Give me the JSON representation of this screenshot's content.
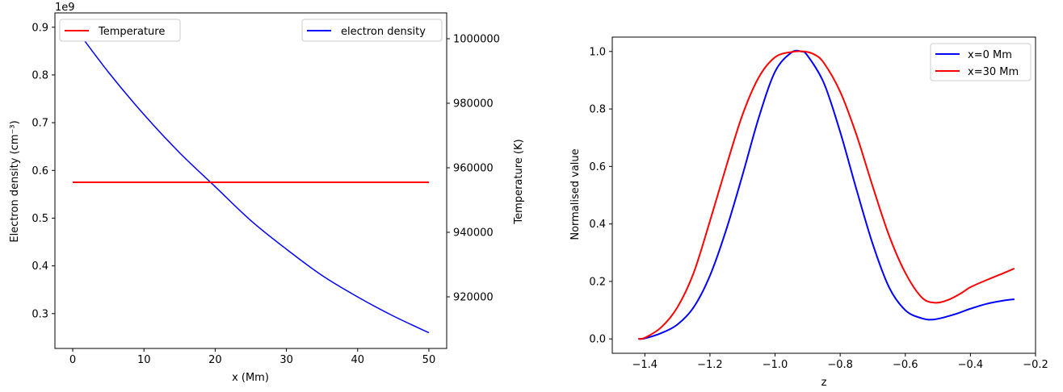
{
  "chart_data": [
    {
      "type": "line",
      "xlabel": "x (Mm)",
      "ylabel_left": "Electron density (cm⁻³)",
      "ylabel_right": "Temperature (K)",
      "offset_label": "1e9",
      "xlim": [
        -2.5,
        52.5
      ],
      "ylim_left": [
        0.227,
        0.93
      ],
      "ylim_right": [
        904000,
        1008000
      ],
      "x_ticks": [
        0,
        10,
        20,
        30,
        40,
        50
      ],
      "y_ticks_left": [
        0.3,
        0.4,
        0.5,
        0.6,
        0.7,
        0.8,
        0.9
      ],
      "y_ticks_right": [
        920000,
        940000,
        960000,
        980000,
        1000000
      ],
      "legend_left": "top-left",
      "legend_right": "top-right",
      "series": [
        {
          "name": "electron density",
          "axis": "left",
          "color": "#0000ff",
          "x": [
            0,
            5,
            10,
            15,
            20,
            25,
            30,
            35,
            40,
            45,
            50
          ],
          "values": [
            0.905,
            0.806,
            0.717,
            0.637,
            0.566,
            0.495,
            0.435,
            0.38,
            0.335,
            0.295,
            0.26
          ]
        },
        {
          "name": "Temperature",
          "axis": "right",
          "color": "#ff0000",
          "x": [
            0,
            50
          ],
          "values": [
            955500,
            955500
          ]
        }
      ]
    },
    {
      "type": "line",
      "xlabel": "z",
      "ylabel": "Normalised value",
      "xlim": [
        -1.5,
        -0.2
      ],
      "ylim": [
        -0.05,
        1.05
      ],
      "x_ticks": [
        -1.4,
        -1.2,
        -1.0,
        -0.8,
        -0.6,
        -0.4,
        -0.2
      ],
      "y_ticks": [
        0.0,
        0.2,
        0.4,
        0.6,
        0.8,
        1.0
      ],
      "legend": "top-right",
      "series": [
        {
          "name": "x=0 Mm",
          "color": "#0000ff",
          "x": [
            -1.42,
            -1.4,
            -1.35,
            -1.3,
            -1.25,
            -1.2,
            -1.15,
            -1.1,
            -1.05,
            -1.0,
            -0.95,
            -0.92,
            -0.9,
            -0.85,
            -0.8,
            -0.75,
            -0.7,
            -0.65,
            -0.6,
            -0.55,
            -0.51,
            -0.45,
            -0.4,
            -0.35,
            -0.3,
            -0.265
          ],
          "values": [
            0.0,
            0.002,
            0.02,
            0.05,
            0.11,
            0.22,
            0.38,
            0.57,
            0.77,
            0.93,
            0.996,
            1.0,
            0.985,
            0.89,
            0.72,
            0.52,
            0.33,
            0.18,
            0.1,
            0.072,
            0.068,
            0.085,
            0.105,
            0.122,
            0.133,
            0.138
          ]
        },
        {
          "name": "x=30 Mm",
          "color": "#ff0000",
          "x": [
            -1.42,
            -1.4,
            -1.35,
            -1.3,
            -1.25,
            -1.2,
            -1.15,
            -1.1,
            -1.05,
            -1.0,
            -0.95,
            -0.91,
            -0.88,
            -0.85,
            -0.8,
            -0.75,
            -0.7,
            -0.65,
            -0.6,
            -0.55,
            -0.51,
            -0.47,
            -0.43,
            -0.4,
            -0.35,
            -0.3,
            -0.265
          ],
          "values": [
            0.0,
            0.004,
            0.04,
            0.11,
            0.23,
            0.41,
            0.6,
            0.78,
            0.91,
            0.98,
            0.998,
            1.0,
            0.99,
            0.96,
            0.86,
            0.71,
            0.53,
            0.36,
            0.23,
            0.145,
            0.126,
            0.135,
            0.158,
            0.18,
            0.205,
            0.228,
            0.245
          ]
        }
      ]
    }
  ]
}
